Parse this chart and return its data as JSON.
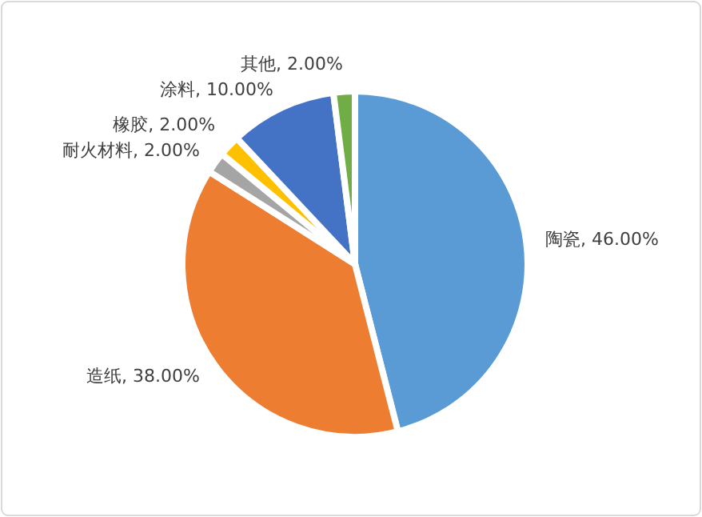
{
  "chart_data": {
    "type": "pie",
    "categories": [
      "陶瓷",
      "造纸",
      "耐火材料",
      "橡胶",
      "涂料",
      "其他"
    ],
    "values": [
      46,
      38,
      2,
      2,
      10,
      2
    ],
    "colors": [
      "#5b9bd5",
      "#ed7d31",
      "#a5a5a5",
      "#ffc000",
      "#4472c4",
      "#70ad47"
    ],
    "value_labels": [
      "46.00%",
      "38.00%",
      "2.00%",
      "2.00%",
      "10.00%",
      "2.00%"
    ],
    "legend": false
  }
}
